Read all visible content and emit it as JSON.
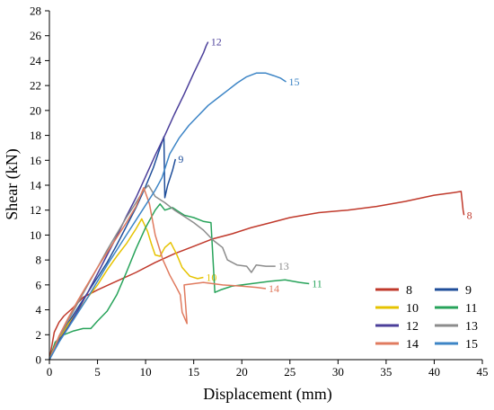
{
  "chart_data": {
    "type": "line",
    "title": "",
    "xlabel": "Displacement (mm)",
    "ylabel": "Shear (kN)",
    "xlim": [
      0,
      45
    ],
    "ylim": [
      0,
      28
    ],
    "xticks": [
      0,
      5,
      10,
      15,
      20,
      25,
      30,
      35,
      40,
      45
    ],
    "yticks": [
      0,
      2,
      4,
      6,
      8,
      10,
      12,
      14,
      16,
      18,
      20,
      22,
      24,
      26,
      28
    ],
    "grid": false,
    "legend_position": "bottom-right",
    "series": [
      {
        "name": "8",
        "color": "#c0392b",
        "end_label": "8",
        "points": [
          [
            0,
            0
          ],
          [
            0.5,
            2.2
          ],
          [
            1.0,
            3.0
          ],
          [
            1.5,
            3.5
          ],
          [
            2.5,
            4.2
          ],
          [
            3.5,
            5.0
          ],
          [
            5,
            5.6
          ],
          [
            7,
            6.3
          ],
          [
            9,
            7.0
          ],
          [
            11,
            7.8
          ],
          [
            13,
            8.5
          ],
          [
            15,
            9.1
          ],
          [
            17,
            9.7
          ],
          [
            19,
            10.1
          ],
          [
            21,
            10.6
          ],
          [
            23,
            11.0
          ],
          [
            25,
            11.4
          ],
          [
            28,
            11.8
          ],
          [
            31,
            12.0
          ],
          [
            34,
            12.3
          ],
          [
            37,
            12.7
          ],
          [
            40,
            13.2
          ],
          [
            42,
            13.4
          ],
          [
            42.8,
            13.5
          ],
          [
            43,
            12.0
          ],
          [
            43.1,
            11.6
          ]
        ]
      },
      {
        "name": "9",
        "color": "#1f4e9a",
        "end_label": "9",
        "points": [
          [
            0,
            0
          ],
          [
            1,
            1.8
          ],
          [
            2,
            3.0
          ],
          [
            3,
            4.2
          ],
          [
            4,
            5.4
          ],
          [
            5,
            6.6
          ],
          [
            6,
            7.8
          ],
          [
            7,
            9.2
          ],
          [
            8,
            10.7
          ],
          [
            9,
            12.2
          ],
          [
            10,
            13.9
          ],
          [
            10.8,
            15.4
          ],
          [
            11.5,
            17.0
          ],
          [
            11.9,
            17.9
          ],
          [
            12,
            13.0
          ],
          [
            12.3,
            14.0
          ],
          [
            12.8,
            15.2
          ],
          [
            13.1,
            16.1
          ]
        ]
      },
      {
        "name": "10",
        "color": "#e6c300",
        "end_label": "10",
        "points": [
          [
            0,
            0
          ],
          [
            1,
            1.6
          ],
          [
            2,
            2.9
          ],
          [
            3,
            3.9
          ],
          [
            4,
            5.0
          ],
          [
            5,
            6.0
          ],
          [
            6,
            7.2
          ],
          [
            7,
            8.3
          ],
          [
            8,
            9.3
          ],
          [
            9,
            10.5
          ],
          [
            9.6,
            11.3
          ],
          [
            10.2,
            10.3
          ],
          [
            10.6,
            9.3
          ],
          [
            11,
            8.4
          ],
          [
            11.5,
            8.3
          ],
          [
            12,
            9.0
          ],
          [
            12.6,
            9.4
          ],
          [
            13.2,
            8.5
          ],
          [
            13.8,
            7.4
          ],
          [
            14.6,
            6.7
          ],
          [
            15.4,
            6.5
          ],
          [
            16,
            6.6
          ]
        ]
      },
      {
        "name": "11",
        "color": "#27a35a",
        "end_label": "11",
        "points": [
          [
            0,
            0
          ],
          [
            0.6,
            1.4
          ],
          [
            1.5,
            2.0
          ],
          [
            2.5,
            2.3
          ],
          [
            3.5,
            2.5
          ],
          [
            4.3,
            2.5
          ],
          [
            5,
            3.1
          ],
          [
            6,
            3.9
          ],
          [
            7,
            5.2
          ],
          [
            8,
            7.0
          ],
          [
            9,
            8.9
          ],
          [
            10,
            10.6
          ],
          [
            11,
            12.0
          ],
          [
            11.5,
            12.5
          ],
          [
            12,
            12.0
          ],
          [
            12.8,
            12.2
          ],
          [
            13.4,
            11.9
          ],
          [
            14,
            11.6
          ],
          [
            15,
            11.4
          ],
          [
            16,
            11.1
          ],
          [
            16.8,
            11.0
          ],
          [
            17.2,
            5.4
          ],
          [
            17.8,
            5.6
          ],
          [
            19,
            5.9
          ],
          [
            21,
            6.1
          ],
          [
            23,
            6.3
          ],
          [
            24.5,
            6.4
          ],
          [
            26,
            6.2
          ],
          [
            27,
            6.1
          ]
        ]
      },
      {
        "name": "12",
        "color": "#4b3f9a",
        "end_label": "12",
        "points": [
          [
            0,
            0
          ],
          [
            1,
            1.5
          ],
          [
            2,
            2.7
          ],
          [
            3,
            4.0
          ],
          [
            4,
            5.4
          ],
          [
            5,
            6.9
          ],
          [
            6,
            8.4
          ],
          [
            7,
            9.9
          ],
          [
            8,
            11.5
          ],
          [
            9,
            13.0
          ],
          [
            10,
            14.7
          ],
          [
            11,
            16.4
          ],
          [
            12,
            18.0
          ],
          [
            13,
            19.7
          ],
          [
            14,
            21.3
          ],
          [
            15,
            23.0
          ],
          [
            16,
            24.6
          ],
          [
            16.3,
            25.2
          ],
          [
            16.5,
            25.5
          ]
        ]
      },
      {
        "name": "13",
        "color": "#8c8c8c",
        "end_label": "13",
        "points": [
          [
            0,
            0
          ],
          [
            1,
            1.8
          ],
          [
            2,
            3.2
          ],
          [
            3,
            4.6
          ],
          [
            4,
            6.0
          ],
          [
            5,
            7.4
          ],
          [
            6,
            8.8
          ],
          [
            7,
            10.1
          ],
          [
            8,
            11.4
          ],
          [
            9,
            12.6
          ],
          [
            9.8,
            13.6
          ],
          [
            10.3,
            14.0
          ],
          [
            11,
            13.1
          ],
          [
            12,
            12.6
          ],
          [
            13,
            12.0
          ],
          [
            14,
            11.5
          ],
          [
            15,
            11.0
          ],
          [
            16,
            10.4
          ],
          [
            17,
            9.6
          ],
          [
            18,
            9.0
          ],
          [
            18.5,
            8.0
          ],
          [
            19.5,
            7.6
          ],
          [
            20.5,
            7.5
          ],
          [
            21,
            7.0
          ],
          [
            21.5,
            7.6
          ],
          [
            22.5,
            7.5
          ],
          [
            23.5,
            7.5
          ]
        ]
      },
      {
        "name": "14",
        "color": "#e07b5f",
        "end_label": "14",
        "points": [
          [
            0,
            0
          ],
          [
            1,
            1.9
          ],
          [
            2,
            3.4
          ],
          [
            3,
            4.8
          ],
          [
            4,
            6.1
          ],
          [
            5,
            7.4
          ],
          [
            6,
            8.6
          ],
          [
            7,
            9.8
          ],
          [
            8,
            11.0
          ],
          [
            9,
            12.3
          ],
          [
            9.8,
            13.8
          ],
          [
            10.4,
            12.5
          ],
          [
            11,
            10.0
          ],
          [
            11.8,
            8.0
          ],
          [
            12.5,
            6.8
          ],
          [
            13.2,
            5.8
          ],
          [
            13.6,
            5.2
          ],
          [
            13.8,
            3.8
          ],
          [
            14.3,
            2.9
          ],
          [
            14.0,
            6.0
          ],
          [
            16,
            6.2
          ],
          [
            18,
            6.0
          ],
          [
            20,
            5.9
          ],
          [
            21.5,
            5.8
          ],
          [
            22.5,
            5.7
          ]
        ]
      },
      {
        "name": "15",
        "color": "#3d85c6",
        "end_label": "15",
        "points": [
          [
            0,
            0
          ],
          [
            1,
            1.4
          ],
          [
            2,
            2.6
          ],
          [
            3,
            3.8
          ],
          [
            4,
            5.0
          ],
          [
            5,
            6.3
          ],
          [
            6,
            7.6
          ],
          [
            7,
            8.8
          ],
          [
            8,
            10.0
          ],
          [
            9,
            11.2
          ],
          [
            10,
            12.4
          ],
          [
            11,
            13.6
          ],
          [
            11.7,
            14.6
          ],
          [
            12.5,
            16.5
          ],
          [
            13.5,
            17.8
          ],
          [
            14.5,
            18.8
          ],
          [
            15.5,
            19.6
          ],
          [
            16.5,
            20.4
          ],
          [
            17.5,
            21.0
          ],
          [
            18.5,
            21.6
          ],
          [
            19.5,
            22.2
          ],
          [
            20.5,
            22.7
          ],
          [
            21.5,
            23.0
          ],
          [
            22.5,
            23.0
          ],
          [
            23.3,
            22.8
          ],
          [
            24,
            22.6
          ],
          [
            24.6,
            22.3
          ]
        ]
      }
    ]
  }
}
